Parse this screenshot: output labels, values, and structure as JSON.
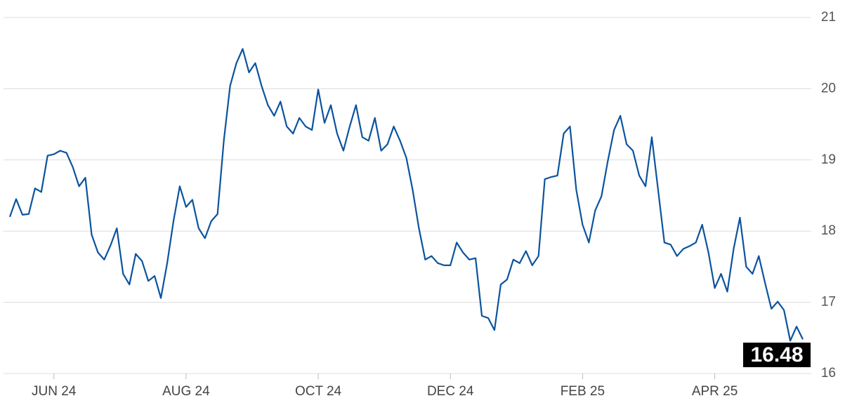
{
  "chart_data": {
    "type": "line",
    "categories": [
      null,
      null,
      null,
      null,
      null,
      null,
      null,
      "JUN 24",
      null,
      null,
      null,
      null,
      null,
      null,
      null,
      null,
      null,
      null,
      null,
      null,
      null,
      null,
      null,
      null,
      null,
      null,
      null,
      null,
      "AUG 24",
      null,
      null,
      null,
      null,
      null,
      null,
      null,
      null,
      null,
      null,
      null,
      null,
      null,
      null,
      null,
      null,
      null,
      null,
      null,
      null,
      "OCT 24",
      null,
      null,
      null,
      null,
      null,
      null,
      null,
      null,
      null,
      null,
      null,
      null,
      null,
      null,
      null,
      null,
      null,
      null,
      null,
      null,
      "DEC 24",
      null,
      null,
      null,
      null,
      null,
      null,
      null,
      null,
      null,
      null,
      null,
      null,
      null,
      null,
      null,
      null,
      null,
      null,
      null,
      null,
      "FEB 25",
      null,
      null,
      null,
      null,
      null,
      null,
      null,
      null,
      null,
      null,
      null,
      null,
      null,
      null,
      null,
      null,
      null,
      null,
      null,
      null,
      "APR 25",
      null,
      null,
      null,
      null,
      null,
      null,
      null,
      null,
      null,
      null,
      null,
      null,
      null,
      null
    ],
    "values": [
      18.2,
      18.45,
      18.23,
      18.24,
      18.6,
      18.55,
      19.06,
      19.08,
      19.13,
      19.1,
      18.9,
      18.63,
      18.75,
      17.95,
      17.7,
      17.6,
      17.8,
      18.04,
      17.4,
      17.25,
      17.68,
      17.58,
      17.3,
      17.37,
      17.06,
      17.55,
      18.14,
      18.63,
      18.34,
      18.44,
      18.04,
      17.9,
      18.14,
      18.24,
      19.27,
      20.04,
      20.36,
      20.56,
      20.23,
      20.36,
      20.04,
      19.77,
      19.62,
      19.82,
      19.47,
      19.37,
      19.59,
      19.47,
      19.42,
      19.99,
      19.52,
      19.77,
      19.37,
      19.13,
      19.47,
      19.77,
      19.32,
      19.27,
      19.59,
      19.13,
      19.22,
      19.47,
      19.27,
      19.03,
      18.58,
      18.04,
      17.6,
      17.65,
      17.55,
      17.52,
      17.52,
      17.84,
      17.7,
      17.6,
      17.62,
      16.81,
      16.78,
      16.61,
      17.25,
      17.32,
      17.6,
      17.55,
      17.72,
      17.52,
      17.65,
      18.73,
      18.76,
      18.78,
      19.37,
      19.47,
      18.58,
      18.09,
      17.84,
      18.29,
      18.49,
      18.98,
      19.42,
      19.62,
      19.22,
      19.13,
      18.78,
      18.63,
      19.32,
      18.58,
      17.84,
      17.81,
      17.65,
      17.75,
      17.79,
      17.84,
      18.09,
      17.7,
      17.2,
      17.4,
      17.15,
      17.75,
      18.19,
      17.5,
      17.4,
      17.65,
      17.27,
      16.91,
      17.01,
      16.89,
      16.46,
      16.66,
      16.48
    ],
    "color": "#0b539e",
    "ylim": [
      16,
      21
    ],
    "yticks": [
      16,
      17,
      18,
      19,
      20,
      21
    ],
    "grid": true
  }
}
